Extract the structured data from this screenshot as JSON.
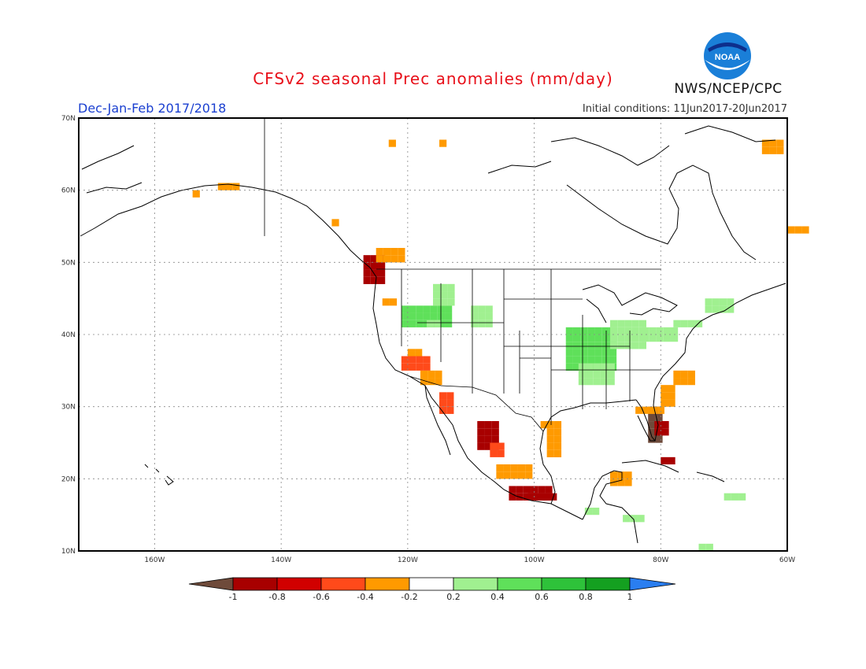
{
  "header": {
    "title": "CFSv2 seasonal Prec anomalies (mm/day)",
    "period": "Dec-Jan-Feb 2017/2018",
    "initial_conditions": "Initial conditions: 11Jun2017-20Jun2017",
    "agency": "NWS/NCEP/CPC",
    "logo_text": "NOAA"
  },
  "map": {
    "projection": "lat-lon",
    "lon_range": [
      -172,
      -60
    ],
    "lat_range": [
      10,
      70
    ],
    "lon_ticks": [
      "160W",
      "140W",
      "120W",
      "100W",
      "80W",
      "60W"
    ],
    "lat_ticks": [
      "10N",
      "20N",
      "30N",
      "40N",
      "50N",
      "60N",
      "70N"
    ],
    "grid": true
  },
  "colorbar": {
    "labels": [
      "-1",
      "-0.8",
      "-0.6",
      "-0.4",
      "-0.2",
      "0.2",
      "0.4",
      "0.6",
      "0.8",
      "1"
    ],
    "colors": [
      "#6e4a3a",
      "#a80000",
      "#d10000",
      "#ff4a1a",
      "#ff9a00",
      "#ffffff",
      "#a0f090",
      "#5fe05a",
      "#2ec23a",
      "#14a020",
      "#2a7ef0"
    ]
  },
  "anomaly_regions": [
    {
      "name": "Pacific Northwest coast",
      "level": -0.8
    },
    {
      "name": "Southern California",
      "level": -0.6
    },
    {
      "name": "Gulf of California coast",
      "level": -0.6
    },
    {
      "name": "Western Mexico coast",
      "level": -0.8
    },
    {
      "name": "Florida",
      "level": -1.0
    },
    {
      "name": "Southeast coast",
      "level": -0.4
    },
    {
      "name": "Gulf coast Texas",
      "level": -0.4
    },
    {
      "name": "Yucatan",
      "level": -0.4
    },
    {
      "name": "Cuba",
      "level": -0.8
    },
    {
      "name": "Southern Alaska coast",
      "level": -0.4
    },
    {
      "name": "Ohio and Mississippi Valley",
      "level": 0.4
    },
    {
      "name": "Northern Rockies",
      "level": 0.4
    },
    {
      "name": "Northeast",
      "level": 0.2
    }
  ]
}
